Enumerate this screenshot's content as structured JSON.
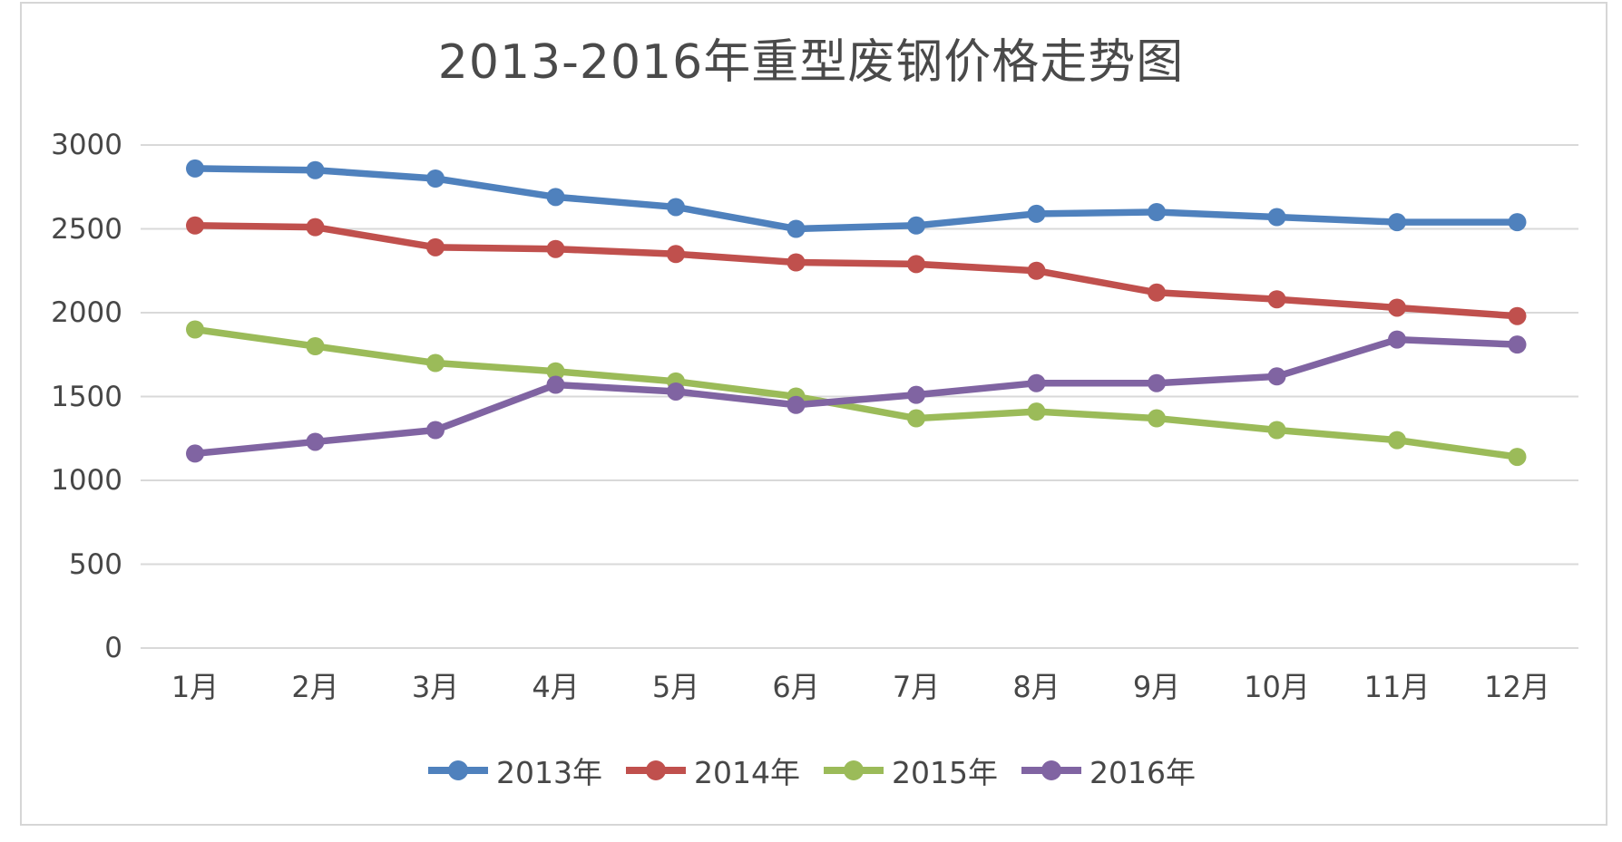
{
  "chart_data": {
    "type": "line",
    "title": "2013-2016年重型废钢价格走势图",
    "categories": [
      "1月",
      "2月",
      "3月",
      "4月",
      "5月",
      "6月",
      "7月",
      "8月",
      "9月",
      "10月",
      "11月",
      "12月"
    ],
    "series": [
      {
        "name": "2013年",
        "color": "#4F81BD",
        "values": [
          2860,
          2850,
          2800,
          2690,
          2630,
          2500,
          2520,
          2590,
          2600,
          2570,
          2540,
          2540
        ]
      },
      {
        "name": "2014年",
        "color": "#C0504D",
        "values": [
          2520,
          2510,
          2390,
          2380,
          2350,
          2300,
          2290,
          2250,
          2120,
          2080,
          2030,
          1980
        ]
      },
      {
        "name": "2015年",
        "color": "#9BBB59",
        "values": [
          1900,
          1800,
          1700,
          1650,
          1590,
          1500,
          1370,
          1410,
          1370,
          1300,
          1240,
          1140
        ]
      },
      {
        "name": "2016年",
        "color": "#8064A2",
        "values": [
          1160,
          1230,
          1300,
          1570,
          1530,
          1450,
          1510,
          1580,
          1580,
          1620,
          1840,
          1810
        ]
      }
    ],
    "xlabel": "",
    "ylabel": "",
    "ylim": [
      0,
      3000
    ],
    "yticks": [
      0,
      500,
      1000,
      1500,
      2000,
      2500,
      3000
    ],
    "grid": true,
    "legend_position": "bottom",
    "marker_shape": "circle"
  },
  "style": {
    "background": "#FFFFFF",
    "frame_border_color": "#D6D6D6",
    "gridline_color": "#D9D9D9",
    "axis_text_color": "#474747",
    "title_color": "#4A4A4A"
  }
}
